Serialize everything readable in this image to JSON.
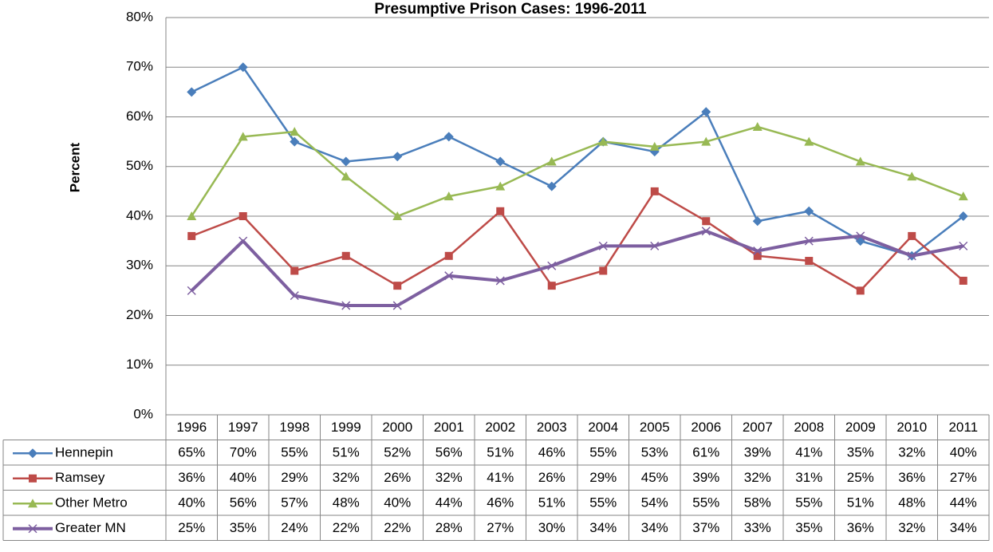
{
  "chart_data": {
    "type": "line",
    "title": "Presumptive Prison Cases: 1996-2011",
    "y_label": "Percent",
    "categories": [
      "1996",
      "1997",
      "1998",
      "1999",
      "2000",
      "2001",
      "2002",
      "2003",
      "2004",
      "2005",
      "2006",
      "2007",
      "2008",
      "2009",
      "2010",
      "2011"
    ],
    "ylim": [
      0,
      80
    ],
    "yticks": [
      {
        "value": 0,
        "label": "0%"
      },
      {
        "value": 10,
        "label": "10%"
      },
      {
        "value": 20,
        "label": "20%"
      },
      {
        "value": 30,
        "label": "30%"
      },
      {
        "value": 40,
        "label": "40%"
      },
      {
        "value": 50,
        "label": "50%"
      },
      {
        "value": 60,
        "label": "60%"
      },
      {
        "value": 70,
        "label": "70%"
      },
      {
        "value": 80,
        "label": "80%"
      }
    ],
    "grid": true,
    "series": [
      {
        "name": "Hennepin",
        "color": "#4A7EBB",
        "marker": "diamond",
        "values": [
          65,
          70,
          55,
          51,
          52,
          56,
          51,
          46,
          55,
          53,
          61,
          39,
          41,
          35,
          32,
          40
        ],
        "value_labels": [
          "65%",
          "70%",
          "55%",
          "51%",
          "52%",
          "56%",
          "51%",
          "46%",
          "55%",
          "53%",
          "61%",
          "39%",
          "41%",
          "35%",
          "32%",
          "40%"
        ]
      },
      {
        "name": "Ramsey",
        "color": "#BE4B48",
        "marker": "square",
        "values": [
          36,
          40,
          29,
          32,
          26,
          32,
          41,
          26,
          29,
          45,
          39,
          32,
          31,
          25,
          36,
          27
        ],
        "value_labels": [
          "36%",
          "40%",
          "29%",
          "32%",
          "26%",
          "32%",
          "41%",
          "26%",
          "29%",
          "45%",
          "39%",
          "32%",
          "31%",
          "25%",
          "36%",
          "27%"
        ]
      },
      {
        "name": "Other Metro",
        "color": "#98B954",
        "marker": "triangle",
        "values": [
          40,
          56,
          57,
          48,
          40,
          44,
          46,
          51,
          55,
          54,
          55,
          58,
          55,
          51,
          48,
          44
        ],
        "value_labels": [
          "40%",
          "56%",
          "57%",
          "48%",
          "40%",
          "44%",
          "46%",
          "51%",
          "55%",
          "54%",
          "55%",
          "58%",
          "55%",
          "51%",
          "48%",
          "44%"
        ]
      },
      {
        "name": "Greater MN",
        "color": "#7D5FA0",
        "marker": "x",
        "values": [
          25,
          35,
          24,
          22,
          22,
          28,
          27,
          30,
          34,
          34,
          37,
          33,
          35,
          36,
          32,
          34
        ],
        "value_labels": [
          "25%",
          "35%",
          "24%",
          "22%",
          "22%",
          "28%",
          "27%",
          "30%",
          "34%",
          "34%",
          "37%",
          "33%",
          "35%",
          "36%",
          "32%",
          "34%"
        ]
      }
    ]
  }
}
